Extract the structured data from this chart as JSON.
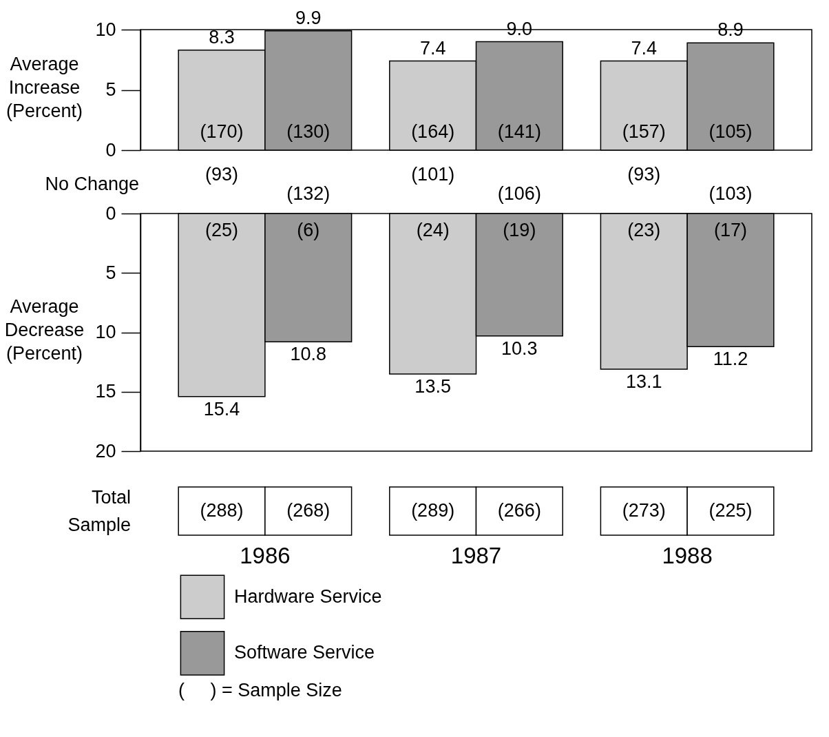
{
  "chart_data": [
    {
      "type": "bar",
      "categories": [
        "1986",
        "1987",
        "1988"
      ],
      "ylabel": "Average Increase (Percent)",
      "ylim": [
        0,
        10
      ],
      "yticks": [
        0,
        5,
        10
      ],
      "tick_labels": "y",
      "legend": "bottom",
      "series": [
        {
          "name": "Hardware Service",
          "color": "#cccccc",
          "values": [
            8.3,
            7.4,
            7.4
          ],
          "value_labels": [
            "8.3",
            "7.4",
            "7.4"
          ]
        },
        {
          "name": "Software Service",
          "color": "#999999",
          "values": [
            9.9,
            9.0,
            8.9
          ],
          "value_labels": [
            "9.9",
            "9.0",
            "8.9"
          ]
        }
      ],
      "annotations": [
        "(170)",
        "(130)",
        "(164)",
        "(141)",
        "(157)",
        "(105)"
      ]
    },
    {
      "type": "bar",
      "categories": [
        "1986",
        "1987",
        "1988"
      ],
      "ylabel": "Average Decrease (Percent)",
      "ylim": [
        20,
        0
      ],
      "yticks": [
        0,
        5,
        10,
        15,
        20
      ],
      "series": [
        {
          "color": "#cccccc",
          "values": [
            15.4,
            13.5,
            13.1
          ],
          "value_labels": [
            "15.4",
            "13.5",
            "13.1"
          ]
        },
        {
          "color": "#999999",
          "values": [
            10.8,
            10.3,
            11.2
          ],
          "value_labels": [
            "10.8",
            "10.3",
            "11.2"
          ]
        }
      ],
      "annotations": [
        "No Change",
        "(93)",
        "(132)",
        "(101)",
        "(106)",
        "(93)",
        "(103)",
        "(25)",
        "(6)",
        "(24)",
        "(19)",
        "(23)",
        "(17)",
        "Total Sample",
        "(288)",
        "(268)",
        "(289)",
        "(266)",
        "(273)",
        "(225)",
        "(     ) = Sample Size"
      ]
    }
  ]
}
